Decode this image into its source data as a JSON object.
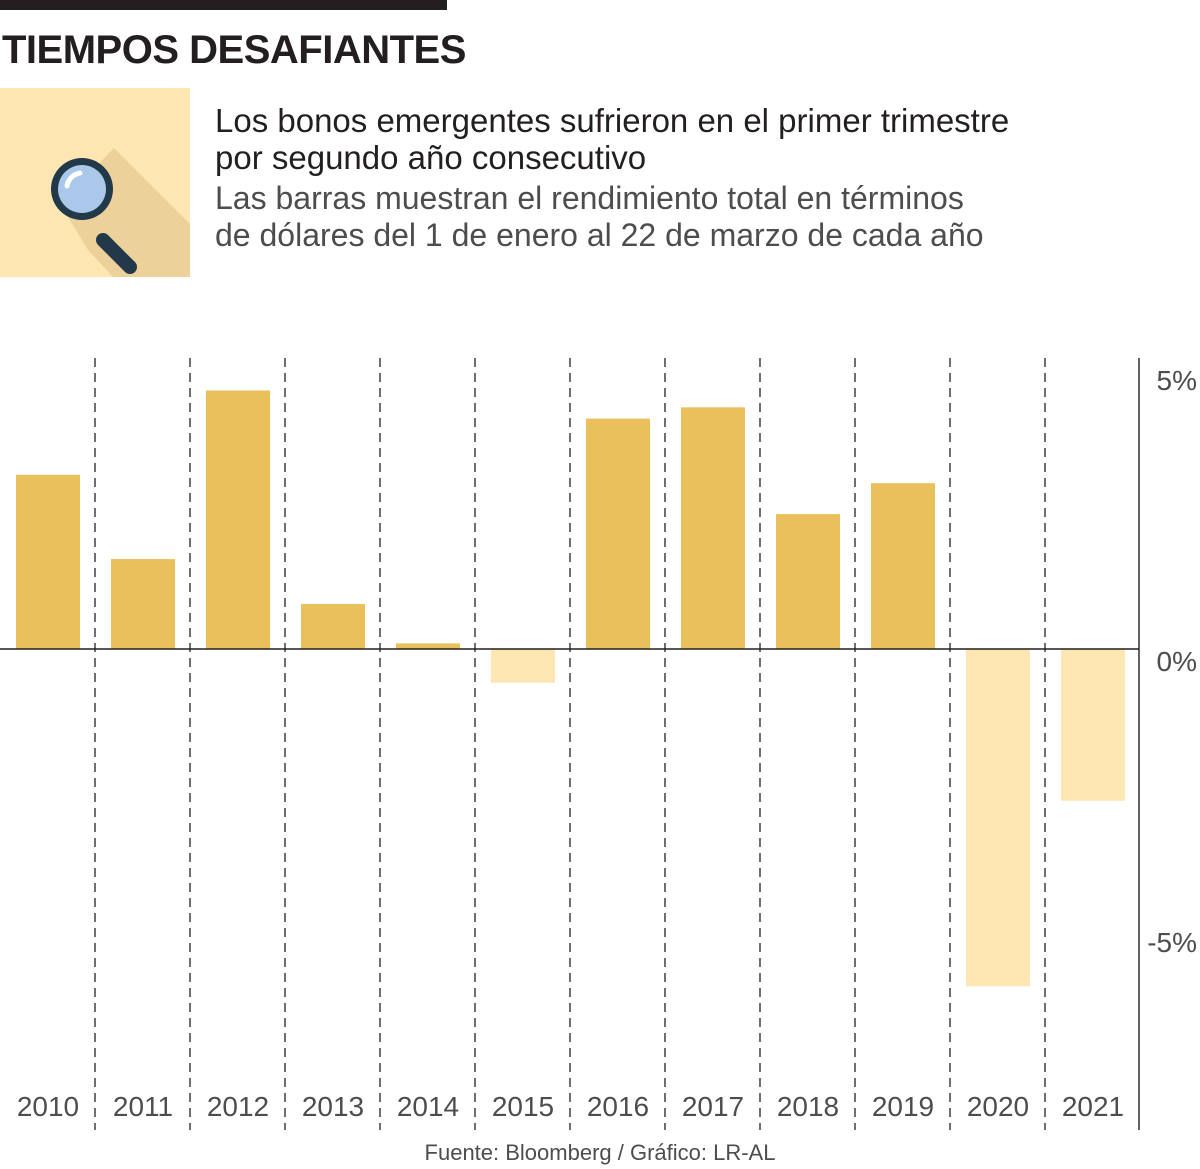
{
  "header": {
    "title": "TIEMPOS DESAFIANTES",
    "headline_line1": "Los bonos emergentes sufrieron en el primer trimestre",
    "headline_line2": "por segundo año consecutivo",
    "subhead_line1": "Las barras muestran el rendimiento total en términos",
    "subhead_line2": "de dólares del 1 de enero al 22 de marzo de cada año"
  },
  "icon": {
    "name": "magnifier-icon"
  },
  "footer": {
    "source": "Fuente: Bloomberg / Gráfico: LR-AL"
  },
  "colors": {
    "positive": "#e9c05b",
    "negative": "#fde6b2",
    "axis": "#231f20",
    "icon_bg": "#fde6b2",
    "icon_shadow": "#ecd29a",
    "lens": "#a9c8ea",
    "frame": "#22394a"
  },
  "chart_data": {
    "type": "bar",
    "title": "Los bonos emergentes sufrieron en el primer trimestre por segundo año consecutivo",
    "categories": [
      "2010",
      "2011",
      "2012",
      "2013",
      "2014",
      "2015",
      "2016",
      "2017",
      "2018",
      "2019",
      "2020",
      "2021"
    ],
    "values": [
      3.1,
      1.6,
      4.6,
      0.8,
      0.1,
      -0.6,
      4.1,
      4.3,
      2.4,
      2.95,
      -6.0,
      -2.7
    ],
    "ylim": [
      -8.0,
      5.0
    ],
    "yticks": [
      5,
      0,
      -5
    ],
    "ytick_labels": [
      "5%",
      "0%",
      "-5%"
    ],
    "xlabel": "",
    "ylabel": "",
    "grid": "vertical dashed separators"
  }
}
